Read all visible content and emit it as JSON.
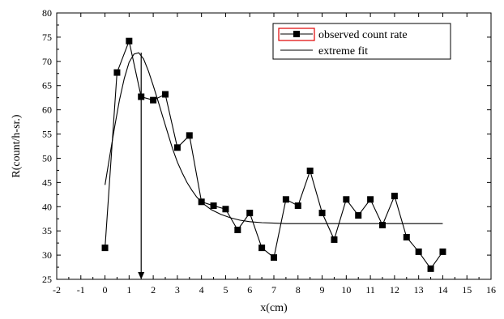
{
  "chart_data": {
    "type": "line",
    "xlabel": "x(cm)",
    "ylabel": "R(count/h-sr.)",
    "xlim": [
      -2,
      16
    ],
    "ylim": [
      25,
      80
    ],
    "xticks": [
      -2,
      -1,
      0,
      1,
      2,
      3,
      4,
      5,
      6,
      7,
      8,
      9,
      10,
      11,
      12,
      13,
      14,
      15,
      16
    ],
    "yticks": [
      25,
      30,
      35,
      40,
      45,
      50,
      55,
      60,
      65,
      70,
      75,
      80
    ],
    "grid": false,
    "legend_position": "top-right",
    "colors": {
      "observed": "#000000",
      "fit": "#000000",
      "legend_marker_box": "#e00000"
    },
    "series": [
      {
        "name": "observed count rate",
        "style": "line-with-square-markers",
        "x": [
          0,
          0.5,
          1,
          1.5,
          2,
          2.5,
          3,
          3.5,
          4,
          4.5,
          5,
          5.5,
          6,
          6.5,
          7,
          7.5,
          8,
          8.5,
          9,
          9.5,
          10,
          10.5,
          11,
          11.5,
          12,
          12.5,
          13,
          13.5,
          14
        ],
        "y": [
          31.5,
          67.7,
          74.2,
          62.7,
          62.0,
          63.2,
          52.2,
          54.7,
          41.0,
          40.2,
          39.5,
          35.2,
          38.7,
          31.5,
          29.5,
          41.5,
          40.2,
          47.4,
          38.7,
          33.2,
          41.5,
          38.2,
          41.5,
          36.2,
          42.2,
          33.7,
          30.7,
          27.2,
          30.7
        ]
      },
      {
        "name": "extreme fit",
        "style": "smooth-line",
        "x": [
          0,
          0.2,
          0.4,
          0.6,
          0.8,
          1.0,
          1.2,
          1.4,
          1.6,
          1.8,
          2.0,
          2.2,
          2.4,
          2.6,
          2.8,
          3.0,
          3.2,
          3.4,
          3.6,
          3.8,
          4.0,
          4.4,
          4.8,
          5.2,
          5.6,
          6.0,
          6.5,
          7.0,
          7.5,
          8.0,
          9.0,
          10.0,
          11.0,
          12.0,
          13.0,
          14.0
        ],
        "y": [
          44.5,
          50.5,
          56.5,
          62.0,
          66.5,
          69.8,
          71.5,
          71.8,
          70.5,
          68.0,
          65.0,
          61.8,
          58.5,
          55.2,
          52.0,
          49.2,
          47.0,
          45.0,
          43.4,
          42.0,
          40.9,
          39.4,
          38.4,
          37.7,
          37.2,
          36.9,
          36.7,
          36.6,
          36.5,
          36.5,
          36.5,
          36.5,
          36.5,
          36.5,
          36.5,
          36.5
        ]
      }
    ],
    "annotation": {
      "type": "arrow-down",
      "x": 1.5,
      "from_y": 71.8,
      "to_y": 25
    }
  }
}
